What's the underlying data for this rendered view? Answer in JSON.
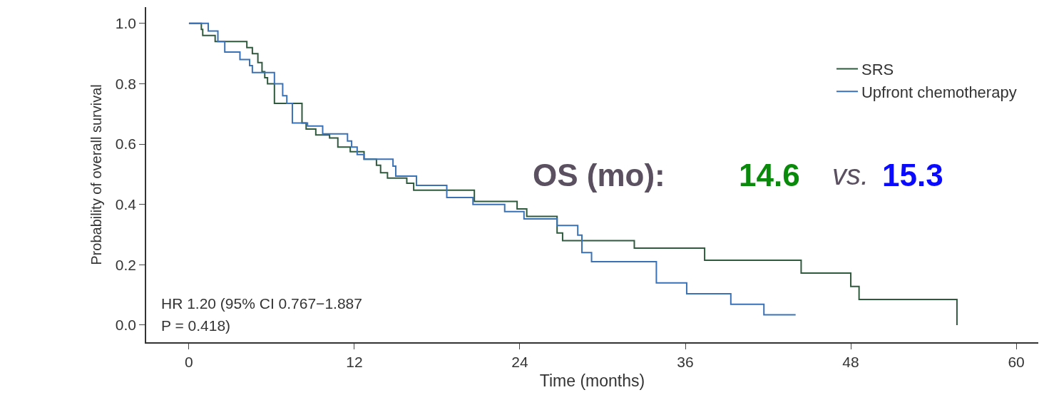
{
  "chart_data": {
    "type": "step",
    "xlabel": "Time (months)",
    "ylabel": "Probability of overall survival",
    "xlim": [
      -3.1,
      61.6
    ],
    "xticks": [
      0,
      12,
      24,
      36,
      48,
      60
    ],
    "ylim": [
      -0.057,
      1.054
    ],
    "yticks": [
      {
        "value": 0,
        "label": "0.0"
      },
      {
        "value": 0.2,
        "label": "0.2"
      },
      {
        "value": 0.4,
        "label": "0.4"
      },
      {
        "value": 0.6,
        "label": "0.6"
      },
      {
        "value": 0.8,
        "label": "0.8"
      },
      {
        "value": 1,
        "label": "1.0"
      }
    ],
    "series": [
      {
        "name": "SRS",
        "color": "#2f5a3e",
        "x": [
          0,
          0.9,
          1.0,
          1.9,
          4.2,
          4.6,
          5.0,
          5.3,
          5.5,
          5.7,
          6.2,
          8.2,
          8.5,
          9.2,
          10.2,
          10.8,
          11.7,
          12.7,
          13.6,
          13.9,
          14.4,
          15.8,
          16.3,
          20.7,
          23.8,
          24.5,
          26.7,
          27.1,
          32.3,
          37.4,
          44.4,
          48.0,
          48.6,
          55.7
        ],
        "values": [
          1.0,
          0.98,
          0.96,
          0.94,
          0.92,
          0.9,
          0.87,
          0.84,
          0.82,
          0.8,
          0.735,
          0.67,
          0.65,
          0.63,
          0.62,
          0.59,
          0.575,
          0.55,
          0.53,
          0.505,
          0.487,
          0.47,
          0.447,
          0.41,
          0.385,
          0.36,
          0.305,
          0.28,
          0.255,
          0.215,
          0.172,
          0.128,
          0.085,
          0.0
        ]
      },
      {
        "name": "Upfront chemotherapy",
        "color": "#3a72b8",
        "x": [
          0,
          1.4,
          2.1,
          2.6,
          3.7,
          4.4,
          4.6,
          6.2,
          6.8,
          7.1,
          7.5,
          8.6,
          9.7,
          11.5,
          11.8,
          12.2,
          12.7,
          14.8,
          15.0,
          16.5,
          18.7,
          20.6,
          22.9,
          24.3,
          26.7,
          28.2,
          28.5,
          29.2,
          33.9,
          36.1,
          39.3,
          41.7,
          44.0
        ],
        "values": [
          1.0,
          0.975,
          0.94,
          0.905,
          0.88,
          0.86,
          0.837,
          0.8,
          0.76,
          0.735,
          0.67,
          0.66,
          0.634,
          0.61,
          0.59,
          0.565,
          0.55,
          0.527,
          0.494,
          0.463,
          0.423,
          0.4,
          0.376,
          0.352,
          0.33,
          0.298,
          0.24,
          0.21,
          0.14,
          0.104,
          0.069,
          0.034,
          0.034
        ]
      }
    ],
    "legend": "top right",
    "marker": "none",
    "line_style": "solid",
    "annotations": [
      "HR 1.20 (95% CI 0.767−1.887",
      "P = 0.418)",
      "OS (mo):",
      "14.6",
      "vs.",
      "15.3"
    ]
  }
}
